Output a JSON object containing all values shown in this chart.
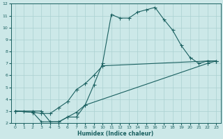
{
  "xlabel": "Humidex (Indice chaleur)",
  "xlim": [
    -0.5,
    23.5
  ],
  "ylim": [
    2,
    12
  ],
  "xticks": [
    0,
    1,
    2,
    3,
    4,
    5,
    6,
    7,
    8,
    9,
    10,
    11,
    12,
    13,
    14,
    15,
    16,
    17,
    18,
    19,
    20,
    21,
    22,
    23
  ],
  "yticks": [
    2,
    3,
    4,
    5,
    6,
    7,
    8,
    9,
    10,
    11,
    12
  ],
  "bg_color": "#cce8e8",
  "line_color": "#1a6060",
  "grid_color": "#aad0d0",
  "line1_x": [
    0,
    1,
    2,
    3,
    4,
    5,
    6,
    7,
    8,
    9,
    10,
    11,
    12,
    13,
    14,
    15,
    16,
    17,
    18,
    19,
    20,
    21,
    22,
    23
  ],
  "line1_y": [
    3.0,
    3.0,
    3.0,
    3.0,
    2.1,
    2.1,
    2.5,
    2.5,
    3.5,
    5.2,
    7.0,
    11.1,
    10.8,
    10.8,
    11.3,
    11.5,
    11.7,
    10.7,
    9.8,
    8.5,
    7.5,
    7.0,
    7.2,
    7.2
  ],
  "line2_x": [
    0,
    2,
    3,
    4,
    5,
    6,
    7,
    8,
    9,
    10,
    22,
    23
  ],
  "line2_y": [
    3.0,
    2.9,
    2.8,
    2.8,
    3.3,
    3.8,
    4.8,
    5.3,
    6.0,
    6.8,
    7.2,
    7.2
  ],
  "line3_x": [
    0,
    2,
    3,
    4,
    5,
    6,
    7,
    8,
    22,
    23
  ],
  "line3_y": [
    3.0,
    2.9,
    2.1,
    2.1,
    2.1,
    2.5,
    2.9,
    3.5,
    7.0,
    7.2
  ]
}
